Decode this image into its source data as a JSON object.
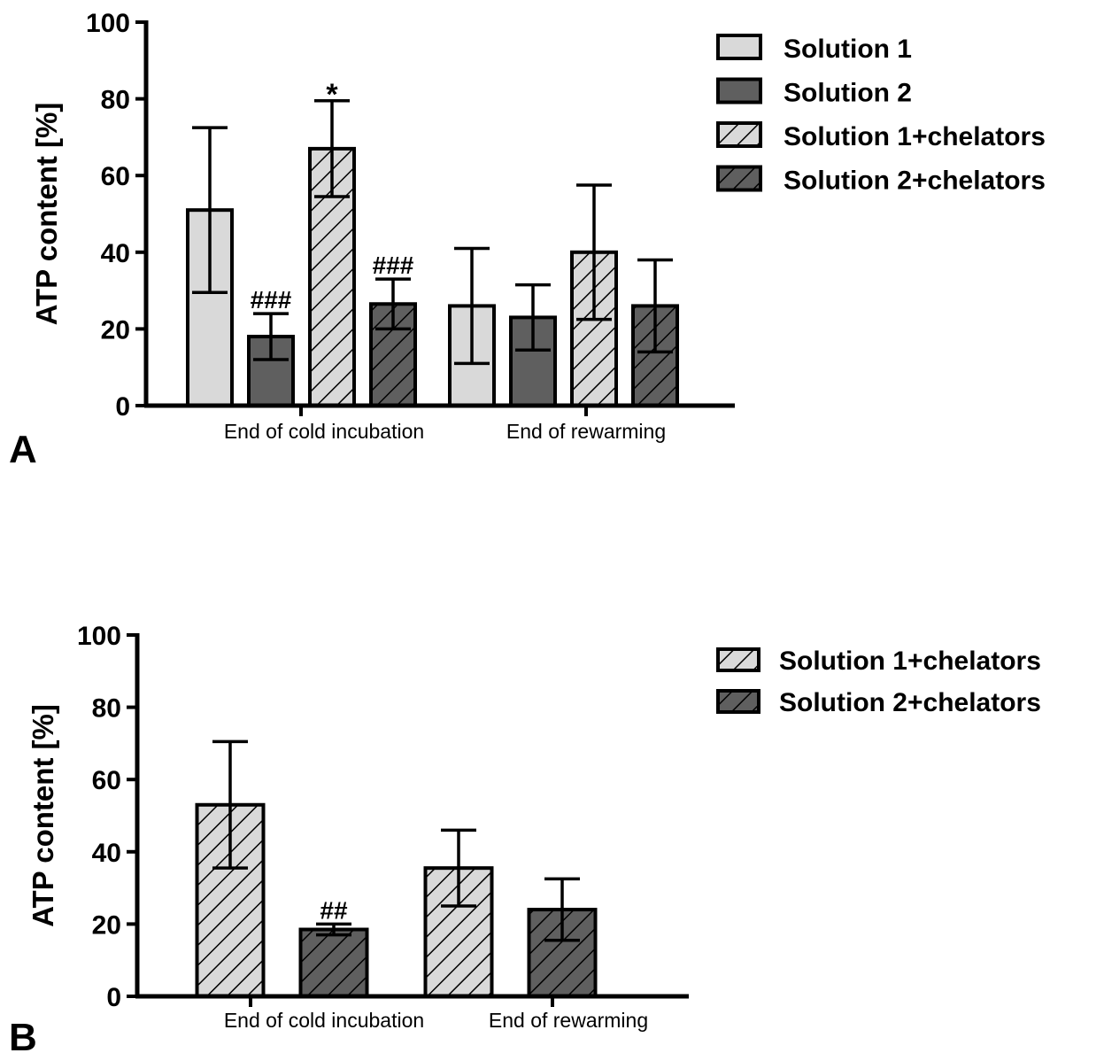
{
  "chart_data": [
    {
      "panel": "A",
      "type": "bar",
      "title": "",
      "xlabel": "",
      "ylabel": "ATP content [%]",
      "ylim": [
        0,
        100
      ],
      "yticks": [
        0,
        20,
        40,
        60,
        80,
        100
      ],
      "categories": [
        "End of cold incubation",
        "End of rewarming"
      ],
      "legend_position": "top-right",
      "series": [
        {
          "name": "Solution 1",
          "fill": "#d9d9d9",
          "hatch": false,
          "values": [
            51,
            26
          ],
          "errors": [
            21.5,
            15
          ]
        },
        {
          "name": "Solution 2",
          "fill": "#5f5f5f",
          "hatch": false,
          "values": [
            18,
            23
          ],
          "errors": [
            6,
            8.5
          ]
        },
        {
          "name": "Solution 1+chelators",
          "fill": "#d9d9d9",
          "hatch": true,
          "values": [
            67,
            40
          ],
          "errors": [
            12.5,
            17.5
          ]
        },
        {
          "name": "Solution 2+chelators",
          "fill": "#5f5f5f",
          "hatch": true,
          "values": [
            26.5,
            26
          ],
          "errors": [
            6.5,
            12
          ]
        }
      ],
      "annotations": [
        {
          "text": "###",
          "series": 1,
          "category": 0
        },
        {
          "text": "*",
          "series": 2,
          "category": 0
        },
        {
          "text": "###",
          "series": 3,
          "category": 0
        }
      ]
    },
    {
      "panel": "B",
      "type": "bar",
      "title": "",
      "xlabel": "",
      "ylabel": "ATP content [%]",
      "ylim": [
        0,
        100
      ],
      "yticks": [
        0,
        20,
        40,
        60,
        80,
        100
      ],
      "categories": [
        "End of cold incubation",
        "End of rewarming"
      ],
      "legend_position": "top-right",
      "series": [
        {
          "name": "Solution 1+chelators",
          "fill": "#d9d9d9",
          "hatch": true,
          "values": [
            53,
            35.5
          ],
          "errors": [
            17.5,
            10.5
          ]
        },
        {
          "name": "Solution 2+chelators",
          "fill": "#5f5f5f",
          "hatch": true,
          "values": [
            18.5,
            24
          ],
          "errors": [
            1.5,
            8.5
          ]
        }
      ],
      "annotations": [
        {
          "text": "##",
          "series": 1,
          "category": 0
        }
      ]
    }
  ]
}
